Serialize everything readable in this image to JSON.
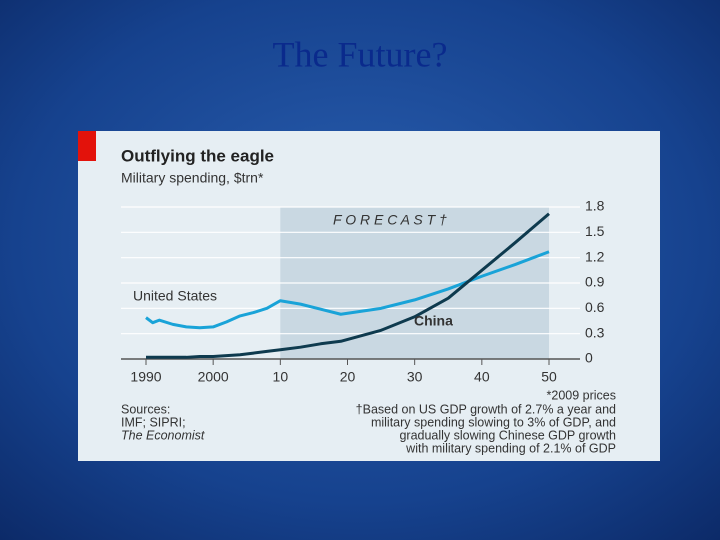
{
  "slide_title": "The Future?",
  "chart_data": {
    "type": "line",
    "title": "Outflying the eagle",
    "subtitle": "Military spending, $trn*",
    "x": [
      1990,
      1991,
      1992,
      1994,
      1996,
      1998,
      2000,
      2002,
      2004,
      2006,
      2008,
      2010,
      2013,
      2016,
      2019,
      2025,
      2030,
      2035,
      2040,
      2045,
      2050
    ],
    "series": [
      {
        "name": "United States",
        "color": "#19a3d8",
        "values": [
          0.49,
          0.43,
          0.46,
          0.41,
          0.38,
          0.37,
          0.38,
          0.44,
          0.51,
          0.55,
          0.6,
          0.69,
          0.65,
          0.59,
          0.53,
          0.6,
          0.7,
          0.83,
          0.98,
          1.12,
          1.27
        ]
      },
      {
        "name": "China",
        "color": "#0e3a4e",
        "values": [
          0.02,
          0.02,
          0.02,
          0.02,
          0.02,
          0.03,
          0.03,
          0.04,
          0.05,
          0.07,
          0.09,
          0.11,
          0.14,
          0.18,
          0.21,
          0.34,
          0.5,
          0.72,
          1.05,
          1.38,
          1.72
        ]
      }
    ],
    "xlim": [
      1990,
      2050
    ],
    "xticks": [
      1990,
      2000,
      {
        "value": 2010,
        "label": "10"
      },
      {
        "value": 2020,
        "label": "20"
      },
      {
        "value": 2030,
        "label": "30"
      },
      {
        "value": 2040,
        "label": "40"
      },
      {
        "value": 2050,
        "label": "50"
      }
    ],
    "ylim": [
      0,
      1.8
    ],
    "yticks": [
      0,
      0.3,
      0.6,
      0.9,
      1.2,
      1.5,
      1.8
    ],
    "grid": true,
    "forecast_start": 2010,
    "forecast_label": "F O R E C A S T †",
    "unit_note": "*2009 prices",
    "sources": [
      "Sources:",
      "IMF; SIPRI;",
      "The Economist"
    ],
    "footnote": [
      "†Based on US GDP growth of 2.7% a year and",
      "military spending slowing to 3% of GDP, and",
      "gradually slowing Chinese GDP growth",
      "with military spending of 2.1% of GDP"
    ]
  }
}
